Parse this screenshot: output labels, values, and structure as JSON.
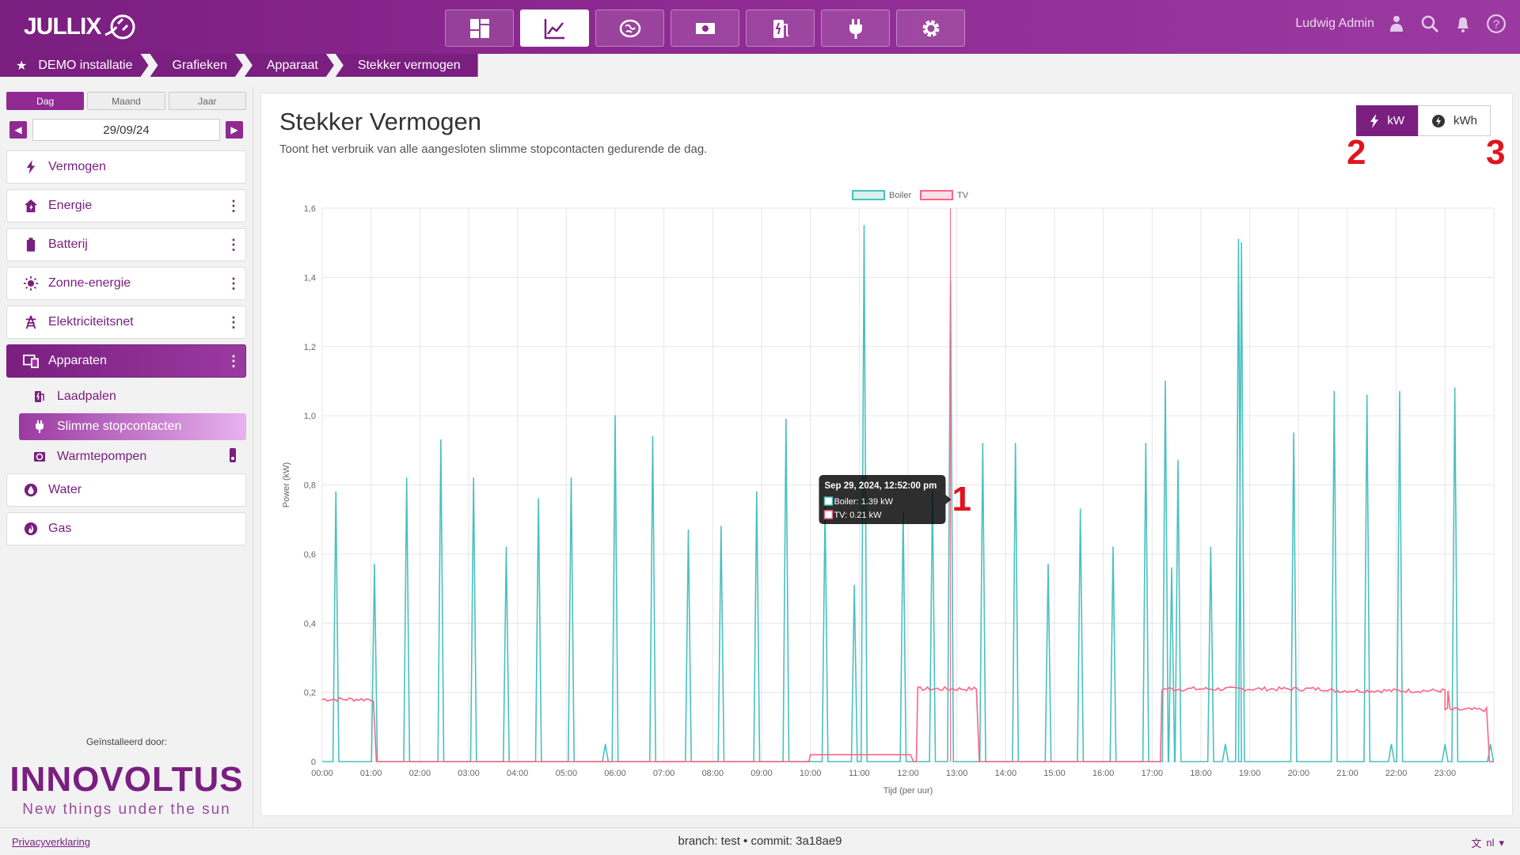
{
  "app": {
    "logo_text": "JULLIX",
    "user_name": "Ludwig Admin",
    "accent": "#8e2a92"
  },
  "topnav": [
    {
      "icon": "dashboard-icon",
      "active": false
    },
    {
      "icon": "chart-line-icon",
      "active": true
    },
    {
      "icon": "brain-icon",
      "active": false
    },
    {
      "icon": "money-icon",
      "active": false
    },
    {
      "icon": "charging-station-icon",
      "active": false
    },
    {
      "icon": "plug-icon",
      "active": false
    },
    {
      "icon": "gear-icon",
      "active": false
    }
  ],
  "breadcrumb": [
    "DEMO installatie",
    "Grafieken",
    "Apparaat",
    "Stekker vermogen"
  ],
  "sidebar": {
    "period_tabs": [
      "Dag",
      "Maand",
      "Jaar"
    ],
    "active_period": "Dag",
    "date": "29/09/24",
    "items": [
      {
        "label": "Vermogen",
        "icon": "lightning-icon",
        "menu": false
      },
      {
        "label": "Energie",
        "icon": "house-energy-icon",
        "menu": true
      },
      {
        "label": "Batterij",
        "icon": "battery-icon",
        "menu": true
      },
      {
        "label": "Zonne-energie",
        "icon": "sun-icon",
        "menu": true
      },
      {
        "label": "Elektriciteitsnet",
        "icon": "power-tower-icon",
        "menu": true
      },
      {
        "label": "Apparaten",
        "icon": "devices-icon",
        "menu": true,
        "active": true
      }
    ],
    "subitems": [
      {
        "label": "Laadpalen",
        "icon": "charging-station-icon"
      },
      {
        "label": "Slimme stopcontacten",
        "icon": "plug-icon",
        "active": true
      },
      {
        "label": "Warmtepompen",
        "icon": "heat-pump-icon"
      }
    ],
    "items_after": [
      {
        "label": "Water",
        "icon": "water-drop-icon"
      },
      {
        "label": "Gas",
        "icon": "flame-icon"
      }
    ],
    "installed_by": "Geïnstalleerd door:",
    "brand_name": "INNOVOLTUS",
    "brand_tagline": "New things under the sun"
  },
  "main": {
    "title": "Stekker Vermogen",
    "subtitle": "Toont het verbruik van alle aangesloten slimme stopcontacten gedurende de dag.",
    "unit_buttons": [
      "kW",
      "kWh"
    ],
    "active_unit": "kW",
    "annotations": [
      "1",
      "2",
      "3"
    ]
  },
  "chart_data": {
    "type": "line",
    "xlabel": "Tijd (per uur)",
    "ylabel": "Power (kW)",
    "ylim": [
      0,
      1.6
    ],
    "yticks": [
      "0",
      "0,2",
      "0,4",
      "0,6",
      "0,8",
      "1,0",
      "1,2",
      "1,4",
      "1,6"
    ],
    "xticks": [
      "00:00",
      "01:00",
      "02:00",
      "03:00",
      "04:00",
      "05:00",
      "06:00",
      "07:00",
      "08:00",
      "09:00",
      "10:00",
      "11:00",
      "12:00",
      "13:00",
      "14:00",
      "15:00",
      "16:00",
      "17:00",
      "18:00",
      "19:00",
      "20:00",
      "21:00",
      "22:00",
      "23:00"
    ],
    "xlim_hours": [
      0,
      24
    ],
    "grid": true,
    "legend_position": "top-center",
    "cursor_hour": 12.867,
    "tooltip": {
      "title": "Sep 29, 2024, 12:52:00 pm",
      "lines": [
        "Boiler: 1.39 kW",
        "TV: 0.21 kW"
      ]
    },
    "series": [
      {
        "name": "Boiler",
        "color": "#4bc0c0",
        "spikes": [
          [
            0.28,
            0.78
          ],
          [
            1.07,
            0.57
          ],
          [
            1.73,
            0.82
          ],
          [
            2.43,
            0.93
          ],
          [
            3.1,
            0.82
          ],
          [
            3.77,
            0.62
          ],
          [
            4.43,
            0.76
          ],
          [
            5.1,
            0.82
          ],
          [
            5.8,
            0.05
          ],
          [
            6.0,
            1.0
          ],
          [
            6.77,
            0.94
          ],
          [
            7.5,
            0.67
          ],
          [
            8.17,
            0.68
          ],
          [
            8.9,
            0.78
          ],
          [
            9.5,
            0.99
          ],
          [
            10.3,
            0.74
          ],
          [
            10.9,
            0.51
          ],
          [
            11.1,
            1.55
          ],
          [
            11.9,
            0.72
          ],
          [
            12.5,
            0.78
          ],
          [
            12.87,
            1.39
          ],
          [
            13.53,
            0.92
          ],
          [
            14.2,
            0.92
          ],
          [
            14.87,
            0.57
          ],
          [
            15.53,
            0.73
          ],
          [
            16.2,
            0.62
          ],
          [
            16.87,
            0.92
          ],
          [
            17.27,
            1.1
          ],
          [
            17.4,
            0.56
          ],
          [
            17.53,
            0.87
          ],
          [
            18.2,
            0.62
          ],
          [
            18.5,
            0.05
          ],
          [
            18.77,
            1.51
          ],
          [
            18.83,
            1.5
          ],
          [
            19.9,
            0.95
          ],
          [
            20.73,
            1.07
          ],
          [
            21.4,
            1.06
          ],
          [
            21.9,
            0.05
          ],
          [
            22.07,
            1.07
          ],
          [
            23.0,
            0.05
          ],
          [
            23.2,
            1.08
          ],
          [
            23.93,
            0.05
          ]
        ]
      },
      {
        "name": "TV",
        "color": "#ff6384",
        "segments": [
          {
            "from": 0.0,
            "to": 1.05,
            "value": 0.18
          },
          {
            "from": 10.0,
            "to": 12.05,
            "value": 0.02
          },
          {
            "from": 12.2,
            "to": 13.4,
            "value": 0.21
          },
          {
            "from": 17.2,
            "to": 20.6,
            "value": 0.21
          },
          {
            "from": 20.6,
            "to": 23.0,
            "value": 0.205
          },
          {
            "from": 23.0,
            "to": 23.85,
            "value": 0.15
          }
        ]
      }
    ]
  },
  "footer": {
    "privacy": "Privacyverklaring",
    "branch": "branch: test • commit: 3a18ae9",
    "lang": "nl"
  }
}
